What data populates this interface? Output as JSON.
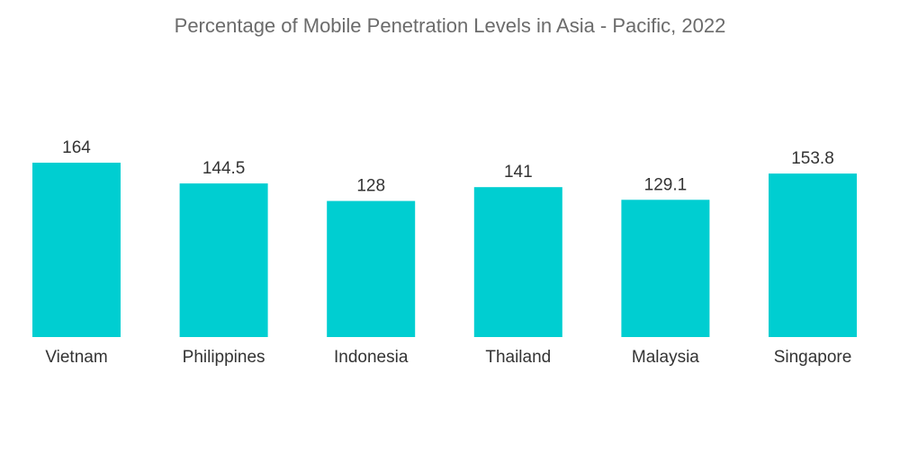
{
  "chart_data": {
    "type": "bar",
    "title": "Percentage of Mobile Penetration Levels in Asia - Pacific, 2022",
    "xlabel": "",
    "ylabel": "",
    "categories": [
      "Vietnam",
      "Philippines",
      "Indonesia",
      "Thailand",
      "Malaysia",
      "Singapore"
    ],
    "values": [
      164,
      144.5,
      128,
      141,
      129.1,
      153.8
    ],
    "value_labels": [
      "164",
      "144.5",
      "128",
      "141",
      "129.1",
      "153.8"
    ],
    "ylim": [
      0,
      164
    ],
    "grid": false,
    "legend": "none",
    "colors": {
      "bar": "#00ced1",
      "text": "#333333",
      "title": "#6b6b6b"
    }
  }
}
